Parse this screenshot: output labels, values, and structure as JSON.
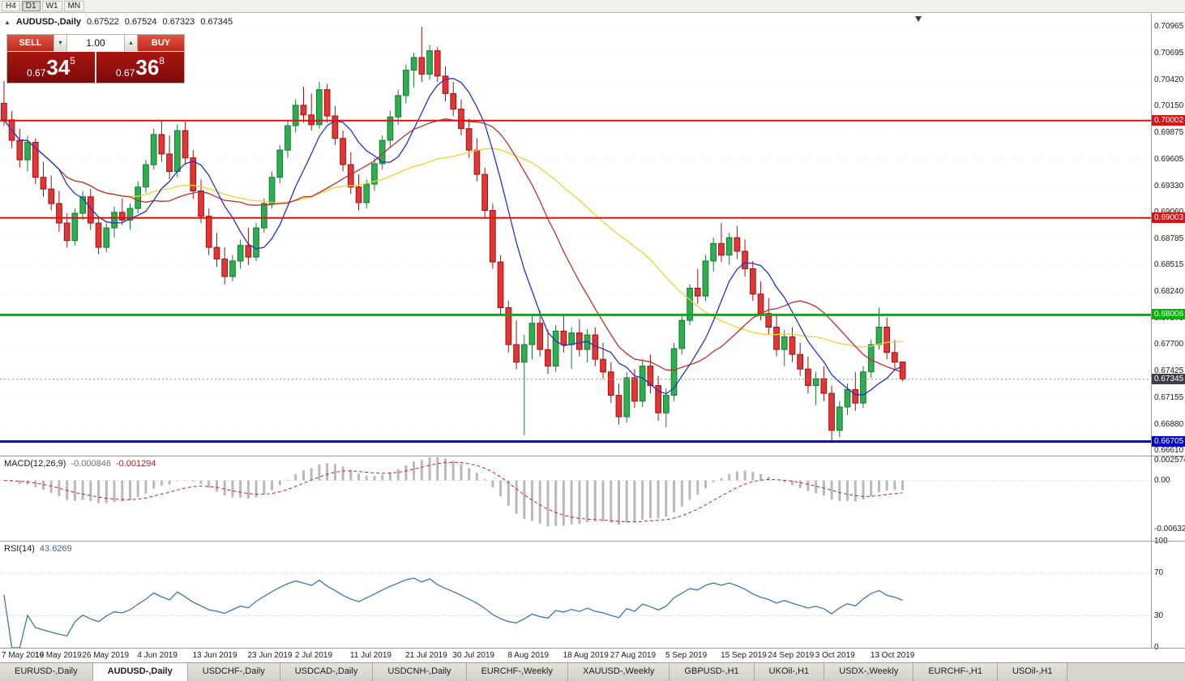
{
  "toolbar": {
    "timeframes": [
      {
        "label": "H4",
        "active": false
      },
      {
        "label": "D1",
        "active": true
      },
      {
        "label": "W1",
        "active": false
      },
      {
        "label": "MN",
        "active": false
      }
    ]
  },
  "icons": {
    "expand": "▲",
    "spin_up": "▴",
    "spin_down": "▾",
    "shift_marker": "▼"
  },
  "chart": {
    "symbol_header": "AUDUSD-,Daily",
    "ohlc": {
      "open": "0.67522",
      "high": "0.67524",
      "low": "0.67323",
      "close": "0.67345"
    },
    "price_axis_labels": [
      "0.70965",
      "0.70695",
      "0.70420",
      "0.70150",
      "0.69875",
      "0.69605",
      "0.69330",
      "0.69060",
      "0.68785",
      "0.68515",
      "0.68240",
      "0.67970",
      "0.67700",
      "0.67425",
      "0.67155",
      "0.66880",
      "0.66610"
    ],
    "hlines": [
      {
        "label": "0.70002",
        "value": 0.70002,
        "color": "#dd1111",
        "width": 2
      },
      {
        "label": "0.69003",
        "value": 0.69003,
        "color": "#dd1111",
        "width": 2
      },
      {
        "label": "0.68006",
        "value": 0.68006,
        "color": "#00b400",
        "width": 3
      },
      {
        "label": "0.66705",
        "value": 0.66705,
        "color": "#0000cc",
        "width": 3
      }
    ],
    "current_price": {
      "label": "0.67345",
      "value": 0.67345,
      "tag_color": "#3c3f46"
    },
    "colors": {
      "bull": "#2eae4f",
      "bull_border": "#157a33",
      "bear": "#e23535",
      "bear_border": "#a31212",
      "ma_fast": "#2433c8",
      "ma_mid": "#bb2f2f",
      "ma_slow": "#e8d533"
    }
  },
  "trade_panel": {
    "sell_label": "SELL",
    "buy_label": "BUY",
    "volume": "1.00",
    "sell_price_prefix": "0.67",
    "sell_price_big": "34",
    "sell_price_sup": "5",
    "buy_price_prefix": "0.67",
    "buy_price_big": "36",
    "buy_price_sup": "8"
  },
  "macd": {
    "title": "MACD(12,26,9)",
    "value1": "-0.000846",
    "value2": "-0.001294",
    "periods": [
      12,
      26,
      9
    ],
    "axis_labels": [
      "0.002574",
      "0.00",
      "-0.006326"
    ],
    "axis_values": [
      0.002574,
      0,
      -0.006326
    ],
    "ylim": [
      -0.0078,
      0.0031
    ]
  },
  "rsi": {
    "title": "RSI(14)",
    "value": "43.6269",
    "period": 14,
    "color": "#3f76ad",
    "axis_labels": [
      "100",
      "70",
      "30",
      "0"
    ],
    "axis_values": [
      100,
      70,
      30,
      0
    ],
    "levels": [
      70,
      30
    ]
  },
  "chart_data": {
    "type": "candlestick",
    "symbol": "AUDUSD-",
    "timeframe": "Daily",
    "price_range": [
      0.6656,
      0.711
    ],
    "slots": 146,
    "indicators": {
      "ma_periods": [
        8,
        17,
        34
      ]
    },
    "x_ticks": [
      {
        "i": 0,
        "label": "7 May 2019"
      },
      {
        "i": 7,
        "label": "16 May 2019"
      },
      {
        "i": 13,
        "label": "26 May 2019"
      },
      {
        "i": 20,
        "label": "4 Jun 2019"
      },
      {
        "i": 27,
        "label": "13 Jun 2019"
      },
      {
        "i": 34,
        "label": "23 Jun 2019"
      },
      {
        "i": 40,
        "label": "2 Jul 2019"
      },
      {
        "i": 47,
        "label": "11 Jul 2019"
      },
      {
        "i": 54,
        "label": "21 Jul 2019"
      },
      {
        "i": 60,
        "label": "30 Jul 2019"
      },
      {
        "i": 67,
        "label": "8 Aug 2019"
      },
      {
        "i": 74,
        "label": "18 Aug 2019"
      },
      {
        "i": 80,
        "label": "27 Aug 2019"
      },
      {
        "i": 87,
        "label": "5 Sep 2019"
      },
      {
        "i": 94,
        "label": "15 Sep 2019"
      },
      {
        "i": 100,
        "label": "24 Sep 2019"
      },
      {
        "i": 106,
        "label": "3 Oct 2019"
      },
      {
        "i": 113,
        "label": "13 Oct 2019"
      }
    ],
    "candles": [
      [
        0.7018,
        0.7041,
        0.6995,
        0.7001
      ],
      [
        0.7001,
        0.701,
        0.6972,
        0.698
      ],
      [
        0.698,
        0.6992,
        0.6952,
        0.696
      ],
      [
        0.696,
        0.6985,
        0.6948,
        0.6978
      ],
      [
        0.6978,
        0.6982,
        0.6935,
        0.6942
      ],
      [
        0.6942,
        0.6958,
        0.6922,
        0.693
      ],
      [
        0.693,
        0.6944,
        0.6908,
        0.6915
      ],
      [
        0.6915,
        0.6928,
        0.6886,
        0.6895
      ],
      [
        0.6895,
        0.6905,
        0.687,
        0.6877
      ],
      [
        0.6877,
        0.691,
        0.6872,
        0.6905
      ],
      [
        0.6905,
        0.6928,
        0.6898,
        0.6922
      ],
      [
        0.6922,
        0.693,
        0.6888,
        0.6895
      ],
      [
        0.6895,
        0.6902,
        0.6863,
        0.687
      ],
      [
        0.687,
        0.6895,
        0.6865,
        0.689
      ],
      [
        0.689,
        0.6912,
        0.688,
        0.6906
      ],
      [
        0.6906,
        0.692,
        0.6893,
        0.6898
      ],
      [
        0.6898,
        0.6915,
        0.6888,
        0.691
      ],
      [
        0.691,
        0.6938,
        0.6905,
        0.6932
      ],
      [
        0.6932,
        0.696,
        0.6926,
        0.6955
      ],
      [
        0.6955,
        0.6992,
        0.695,
        0.6986
      ],
      [
        0.6986,
        0.7001,
        0.6958,
        0.6966
      ],
      [
        0.6966,
        0.6985,
        0.694,
        0.6948
      ],
      [
        0.6948,
        0.6996,
        0.6942,
        0.699
      ],
      [
        0.699,
        0.6999,
        0.6955,
        0.6962
      ],
      [
        0.6962,
        0.697,
        0.692,
        0.6928
      ],
      [
        0.6928,
        0.694,
        0.6895,
        0.6902
      ],
      [
        0.6902,
        0.691,
        0.6862,
        0.687
      ],
      [
        0.687,
        0.6885,
        0.685,
        0.6858
      ],
      [
        0.6858,
        0.687,
        0.6832,
        0.684
      ],
      [
        0.684,
        0.6862,
        0.6835,
        0.6856
      ],
      [
        0.6856,
        0.6878,
        0.6848,
        0.6872
      ],
      [
        0.6872,
        0.689,
        0.6852,
        0.686
      ],
      [
        0.686,
        0.6895,
        0.6856,
        0.689
      ],
      [
        0.689,
        0.692,
        0.6885,
        0.6915
      ],
      [
        0.6915,
        0.6948,
        0.691,
        0.6942
      ],
      [
        0.6942,
        0.6975,
        0.6936,
        0.697
      ],
      [
        0.697,
        0.7,
        0.6962,
        0.6995
      ],
      [
        0.6995,
        0.7022,
        0.6988,
        0.7016
      ],
      [
        0.7016,
        0.7035,
        0.6998,
        0.7006
      ],
      [
        0.7006,
        0.7028,
        0.699,
        0.6996
      ],
      [
        0.6996,
        0.704,
        0.6992,
        0.7032
      ],
      [
        0.7032,
        0.7038,
        0.6998,
        0.7005
      ],
      [
        0.7005,
        0.7015,
        0.6975,
        0.6982
      ],
      [
        0.6982,
        0.699,
        0.6948,
        0.6955
      ],
      [
        0.6955,
        0.6968,
        0.6925,
        0.6932
      ],
      [
        0.6932,
        0.6945,
        0.6908,
        0.6916
      ],
      [
        0.6916,
        0.694,
        0.691,
        0.6935
      ],
      [
        0.6935,
        0.6962,
        0.6928,
        0.6956
      ],
      [
        0.6956,
        0.6985,
        0.695,
        0.698
      ],
      [
        0.698,
        0.701,
        0.6972,
        0.7004
      ],
      [
        0.7004,
        0.7032,
        0.6996,
        0.7026
      ],
      [
        0.7026,
        0.7058,
        0.7018,
        0.7052
      ],
      [
        0.7052,
        0.707,
        0.7034,
        0.7065
      ],
      [
        0.7065,
        0.70965,
        0.704,
        0.7048
      ],
      [
        0.7048,
        0.7078,
        0.7042,
        0.7072
      ],
      [
        0.7072,
        0.7076,
        0.704,
        0.7046
      ],
      [
        0.7046,
        0.7056,
        0.702,
        0.7028
      ],
      [
        0.7028,
        0.704,
        0.7005,
        0.7012
      ],
      [
        0.7012,
        0.7022,
        0.6985,
        0.6992
      ],
      [
        0.6992,
        0.7002,
        0.6962,
        0.697
      ],
      [
        0.697,
        0.6982,
        0.6938,
        0.6945
      ],
      [
        0.6945,
        0.6952,
        0.69,
        0.6908
      ],
      [
        0.6908,
        0.6915,
        0.6848,
        0.6855
      ],
      [
        0.6855,
        0.6862,
        0.68,
        0.6808
      ],
      [
        0.6808,
        0.6815,
        0.6762,
        0.677
      ],
      [
        0.677,
        0.6795,
        0.6745,
        0.6752
      ],
      [
        0.6752,
        0.678,
        0.6677,
        0.677
      ],
      [
        0.677,
        0.68,
        0.6755,
        0.6792
      ],
      [
        0.6792,
        0.6805,
        0.6758,
        0.6765
      ],
      [
        0.6765,
        0.6785,
        0.674,
        0.6748
      ],
      [
        0.6748,
        0.679,
        0.6742,
        0.6784
      ],
      [
        0.6784,
        0.68,
        0.6762,
        0.677
      ],
      [
        0.677,
        0.6788,
        0.6745,
        0.6782
      ],
      [
        0.6782,
        0.6796,
        0.6758,
        0.6765
      ],
      [
        0.6765,
        0.6786,
        0.6752,
        0.678
      ],
      [
        0.678,
        0.6788,
        0.6748,
        0.6755
      ],
      [
        0.6755,
        0.6772,
        0.6735,
        0.6742
      ],
      [
        0.6742,
        0.6752,
        0.671,
        0.6718
      ],
      [
        0.6718,
        0.673,
        0.6688,
        0.6696
      ],
      [
        0.6696,
        0.6742,
        0.669,
        0.6736
      ],
      [
        0.6736,
        0.6745,
        0.6705,
        0.6712
      ],
      [
        0.6712,
        0.6755,
        0.6706,
        0.6748
      ],
      [
        0.6748,
        0.676,
        0.672,
        0.6728
      ],
      [
        0.6728,
        0.6738,
        0.6692,
        0.67
      ],
      [
        0.67,
        0.6725,
        0.6685,
        0.6718
      ],
      [
        0.6718,
        0.6772,
        0.6712,
        0.6766
      ],
      [
        0.6766,
        0.68,
        0.676,
        0.6795
      ],
      [
        0.6795,
        0.6832,
        0.679,
        0.6828
      ],
      [
        0.6828,
        0.6848,
        0.6812,
        0.682
      ],
      [
        0.682,
        0.6862,
        0.6815,
        0.6856
      ],
      [
        0.6856,
        0.688,
        0.6845,
        0.6874
      ],
      [
        0.6874,
        0.6895,
        0.6855,
        0.6862
      ],
      [
        0.6862,
        0.6885,
        0.6852,
        0.688
      ],
      [
        0.688,
        0.6892,
        0.6858,
        0.6866
      ],
      [
        0.6866,
        0.6878,
        0.684,
        0.6848
      ],
      [
        0.6848,
        0.6856,
        0.6815,
        0.6822
      ],
      [
        0.6822,
        0.6835,
        0.6795,
        0.6802
      ],
      [
        0.6802,
        0.6818,
        0.678,
        0.6788
      ],
      [
        0.6788,
        0.68,
        0.6758,
        0.6765
      ],
      [
        0.6765,
        0.6785,
        0.6748,
        0.6778
      ],
      [
        0.6778,
        0.6788,
        0.6752,
        0.676
      ],
      [
        0.676,
        0.6772,
        0.6738,
        0.6745
      ],
      [
        0.6745,
        0.6758,
        0.672,
        0.6728
      ],
      [
        0.6728,
        0.6742,
        0.6708,
        0.6735
      ],
      [
        0.6735,
        0.6748,
        0.6712,
        0.672
      ],
      [
        0.672,
        0.6728,
        0.6671,
        0.6682
      ],
      [
        0.6682,
        0.6712,
        0.6675,
        0.6706
      ],
      [
        0.6706,
        0.673,
        0.6698,
        0.6724
      ],
      [
        0.6724,
        0.6742,
        0.6702,
        0.671
      ],
      [
        0.671,
        0.6748,
        0.6705,
        0.6742
      ],
      [
        0.6742,
        0.6775,
        0.6736,
        0.677
      ],
      [
        0.677,
        0.6808,
        0.6765,
        0.6788
      ],
      [
        0.6788,
        0.6798,
        0.6755,
        0.6762
      ],
      [
        0.6762,
        0.6775,
        0.6745,
        0.67522
      ],
      [
        0.67522,
        0.67524,
        0.67323,
        0.67345
      ]
    ]
  },
  "tabs": [
    {
      "label": "EURUSD-,Daily",
      "active": false
    },
    {
      "label": "AUDUSD-,Daily",
      "active": true
    },
    {
      "label": "USDCHF-,Daily",
      "active": false
    },
    {
      "label": "USDCAD-,Daily",
      "active": false
    },
    {
      "label": "USDCNH-,Daily",
      "active": false
    },
    {
      "label": "EURCHF-,Weekly",
      "active": false
    },
    {
      "label": "XAUUSD-,Weekly",
      "active": false
    },
    {
      "label": "GBPUSD-,H1",
      "active": false
    },
    {
      "label": "UKOil-,H1",
      "active": false
    },
    {
      "label": "USDX-,Weekly",
      "active": false
    },
    {
      "label": "EURCHF-,H1",
      "active": false
    },
    {
      "label": "USOil-,H1",
      "active": false
    }
  ]
}
